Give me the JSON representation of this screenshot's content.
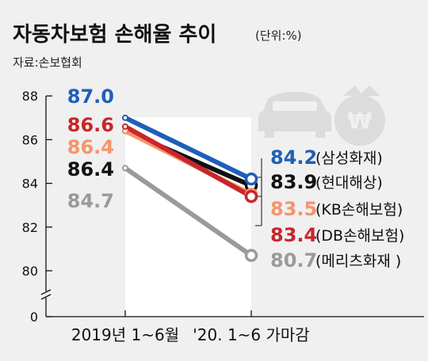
{
  "title": "자동차보험 손해율 추이",
  "unit": "(단위:%)",
  "source": "자료:손보협회",
  "chart_data": {
    "type": "line",
    "title": "자동차보험 손해율 추이",
    "unit": "%",
    "categories": [
      "2019년 1~6월",
      "'20. 1~6 가마감"
    ],
    "yticks": [
      "88",
      "86",
      "84",
      "82",
      "80",
      "0"
    ],
    "ylim": [
      80,
      88
    ],
    "axis_break": true,
    "grid": false,
    "series": [
      {
        "name": "삼성화재",
        "values": [
          87.0,
          84.2
        ],
        "color": "#1f5fb8",
        "start_label": "87.0",
        "end_label": "84.2",
        "legend": "(삼성화재)"
      },
      {
        "name": "현대해상",
        "values": [
          86.4,
          83.9
        ],
        "color": "#111111",
        "start_label": "86.4",
        "end_label": "83.9",
        "legend": "(현대해상)"
      },
      {
        "name": "KB손해보험",
        "values": [
          86.4,
          83.5
        ],
        "color": "#f5956a",
        "start_label": "86.4",
        "end_label": "83.5",
        "legend": "(KB손해보험)"
      },
      {
        "name": "DB손해보험",
        "values": [
          86.6,
          83.4
        ],
        "color": "#c8262b",
        "start_label": "86.6",
        "end_label": "83.4",
        "legend": "(DB손해보험)"
      },
      {
        "name": "메리츠화재",
        "values": [
          84.7,
          80.7
        ],
        "color": "#9a9a9a",
        "start_label": "84.7",
        "end_label": "80.7",
        "legend": "(메리츠화재 )"
      }
    ]
  }
}
